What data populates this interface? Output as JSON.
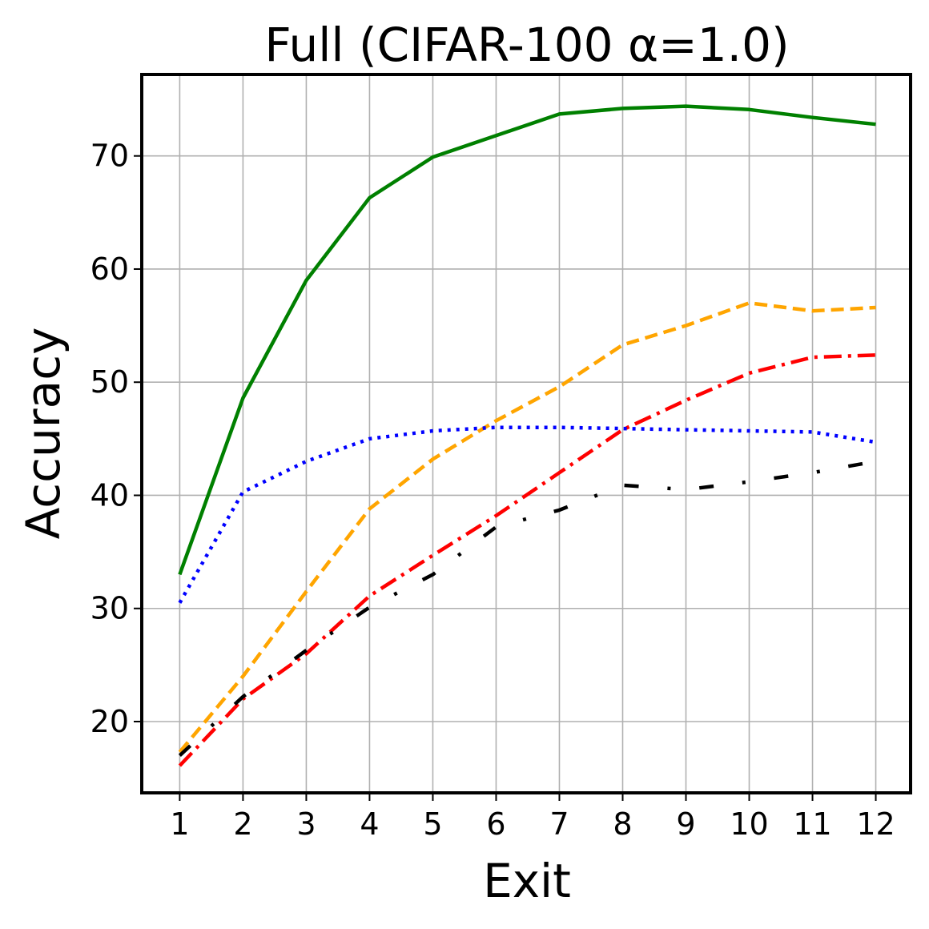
{
  "chart_data": {
    "type": "line",
    "title": "Full (CIFAR-100 α=1.0)",
    "xlabel": "Exit",
    "ylabel": "Accuracy",
    "x": [
      1,
      2,
      3,
      4,
      5,
      6,
      7,
      8,
      9,
      10,
      11,
      12
    ],
    "xticks": [
      "1",
      "2",
      "3",
      "4",
      "5",
      "6",
      "7",
      "8",
      "9",
      "10",
      "11",
      "12"
    ],
    "yticks": [
      20,
      30,
      40,
      50,
      60,
      70
    ],
    "xlim": [
      0.4,
      12.55
    ],
    "ylim": [
      13.7,
      77.2
    ],
    "grid": true,
    "series": [
      {
        "color": "#008000",
        "dash": "solid",
        "values": [
          33.0,
          48.6,
          59.0,
          66.3,
          69.9,
          71.8,
          73.7,
          74.2,
          74.4,
          74.1,
          73.4,
          72.8
        ]
      },
      {
        "color": "#ffa500",
        "dash": "dashed",
        "values": [
          17.3,
          24.0,
          31.5,
          38.8,
          43.2,
          46.6,
          49.6,
          53.3,
          55.0,
          57.0,
          56.3,
          56.6
        ]
      },
      {
        "color": "#ff0000",
        "dash": "dashdot",
        "values": [
          16.1,
          22.0,
          26.0,
          31.1,
          34.7,
          38.2,
          42.0,
          45.8,
          48.4,
          50.8,
          52.2,
          52.4
        ]
      },
      {
        "color": "#0000ff",
        "dash": "dotted",
        "values": [
          30.5,
          40.3,
          43.0,
          45.0,
          45.7,
          46.0,
          46.0,
          45.9,
          45.8,
          45.7,
          45.6,
          44.7
        ]
      },
      {
        "color": "#000000",
        "dash": "loosely-dashdot",
        "values": [
          17.0,
          22.2,
          26.3,
          30.1,
          33.0,
          37.2,
          38.7,
          40.9,
          40.5,
          41.2,
          42.0,
          43.0
        ]
      }
    ]
  }
}
